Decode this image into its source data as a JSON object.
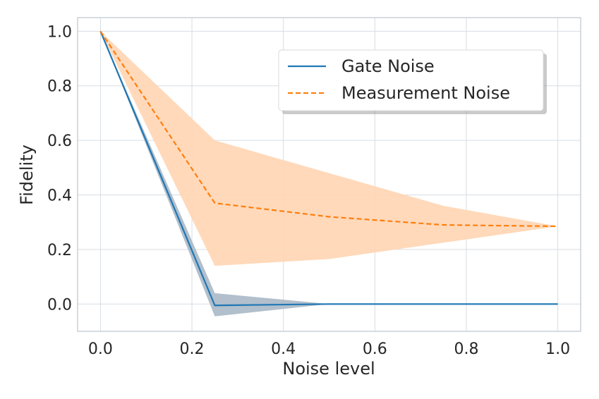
{
  "chart_data": {
    "type": "line",
    "title": "",
    "xlabel": "Noise level",
    "ylabel": "Fidelity",
    "xlim": [
      -0.05,
      1.05
    ],
    "ylim": [
      -0.1,
      1.05
    ],
    "xticks": [
      0.0,
      0.2,
      0.4,
      0.6,
      0.8,
      1.0
    ],
    "yticks": [
      0.0,
      0.2,
      0.4,
      0.6,
      0.8,
      1.0
    ],
    "xtick_labels": [
      "0.0",
      "0.2",
      "0.4",
      "0.6",
      "0.8",
      "1.0"
    ],
    "ytick_labels": [
      "0.0",
      "0.2",
      "0.4",
      "0.6",
      "0.8",
      "1.0"
    ],
    "grid": true,
    "legend_position": "top-right",
    "series": [
      {
        "name": "Gate Noise",
        "color": "#1f77b4",
        "linestyle": "solid",
        "band_color": "#aab8c6",
        "x": [
          0.0,
          0.25,
          0.5,
          0.75,
          1.0
        ],
        "y": [
          1.0,
          -0.005,
          0.0,
          0.0,
          0.0
        ],
        "lower": [
          1.0,
          -0.045,
          0.0,
          0.0,
          0.0
        ],
        "upper": [
          1.0,
          0.04,
          0.0,
          0.0,
          0.0
        ]
      },
      {
        "name": "Measurement Noise",
        "color": "#ff7f0e",
        "linestyle": "dashed",
        "band_color": "#ffd5b2",
        "x": [
          0.0,
          0.25,
          0.5,
          0.75,
          1.0
        ],
        "y": [
          1.0,
          0.37,
          0.32,
          0.29,
          0.285
        ],
        "lower": [
          1.0,
          0.14,
          0.165,
          0.225,
          0.285
        ],
        "upper": [
          1.0,
          0.6,
          0.48,
          0.36,
          0.285
        ]
      }
    ]
  }
}
